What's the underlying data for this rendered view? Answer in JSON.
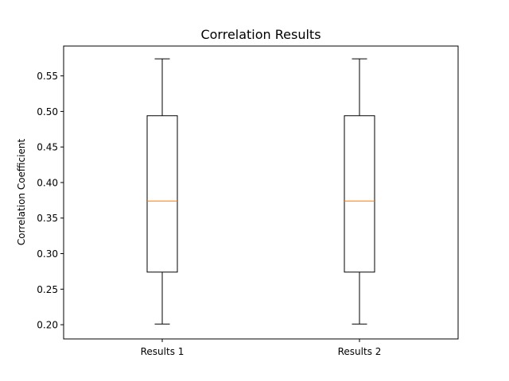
{
  "chart_data": {
    "type": "box",
    "title": "Correlation Results",
    "xlabel": "",
    "ylabel": "Correlation Coefficient",
    "ylim": [
      0.18,
      0.592
    ],
    "yticks": [
      0.2,
      0.25,
      0.3,
      0.35,
      0.4,
      0.45,
      0.5,
      0.55
    ],
    "ytick_labels": [
      "0.20",
      "0.25",
      "0.30",
      "0.35",
      "0.40",
      "0.45",
      "0.50",
      "0.55"
    ],
    "categories": [
      "Results 1",
      "Results 2"
    ],
    "boxes": [
      {
        "category": "Results 1",
        "whisker_low": 0.201,
        "q1": 0.274,
        "median": 0.374,
        "q3": 0.494,
        "whisker_high": 0.574
      },
      {
        "category": "Results 2",
        "whisker_low": 0.201,
        "q1": 0.274,
        "median": 0.374,
        "q3": 0.494,
        "whisker_high": 0.574
      }
    ],
    "grid": false,
    "colors": {
      "box": "#000000",
      "median": "#ff7f0e",
      "axes": "#000000"
    }
  }
}
